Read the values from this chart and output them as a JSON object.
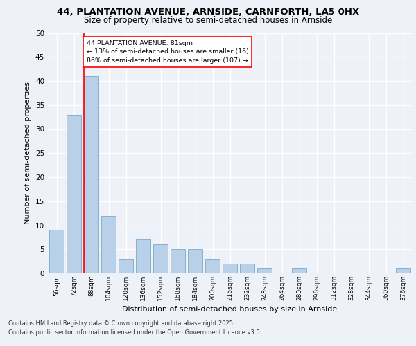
{
  "title1": "44, PLANTATION AVENUE, ARNSIDE, CARNFORTH, LA5 0HX",
  "title2": "Size of property relative to semi-detached houses in Arnside",
  "xlabel": "Distribution of semi-detached houses by size in Arnside",
  "ylabel": "Number of semi-detached properties",
  "bins": [
    "56sqm",
    "72sqm",
    "88sqm",
    "104sqm",
    "120sqm",
    "136sqm",
    "152sqm",
    "168sqm",
    "184sqm",
    "200sqm",
    "216sqm",
    "232sqm",
    "248sqm",
    "264sqm",
    "280sqm",
    "296sqm",
    "312sqm",
    "328sqm",
    "344sqm",
    "360sqm",
    "376sqm"
  ],
  "values": [
    9,
    33,
    41,
    12,
    3,
    7,
    6,
    5,
    5,
    3,
    2,
    2,
    1,
    0,
    1,
    0,
    0,
    0,
    0,
    0,
    1
  ],
  "bar_color": "#b8d0e8",
  "bar_edge_color": "#7aaac8",
  "annotation_text_line1": "44 PLANTATION AVENUE: 81sqm",
  "annotation_text_line2": "← 13% of semi-detached houses are smaller (16)",
  "annotation_text_line3": "86% of semi-detached houses are larger (107) →",
  "ylim": [
    0,
    50
  ],
  "yticks": [
    0,
    5,
    10,
    15,
    20,
    25,
    30,
    35,
    40,
    45,
    50
  ],
  "footer_line1": "Contains HM Land Registry data © Crown copyright and database right 2025.",
  "footer_line2": "Contains public sector information licensed under the Open Government Licence v3.0.",
  "bg_color": "#eef2f8",
  "plot_bg_color": "#eef2f8"
}
